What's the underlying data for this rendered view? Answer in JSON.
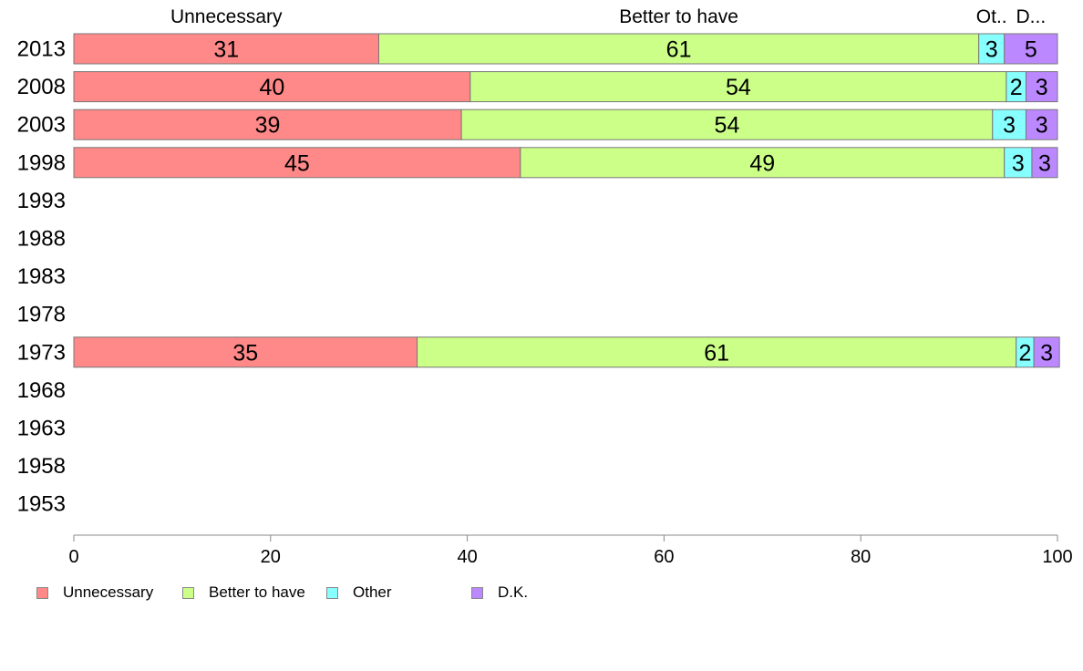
{
  "chart_data": {
    "type": "bar",
    "orientation": "horizontal",
    "stacked": true,
    "categories": [
      "2013",
      "2008",
      "2003",
      "1998",
      "1993",
      "1988",
      "1983",
      "1978",
      "1973",
      "1968",
      "1963",
      "1958",
      "1953"
    ],
    "series": [
      {
        "name": "Unnecessary",
        "color": "#ff8888",
        "values": [
          31,
          40,
          39,
          45,
          null,
          null,
          null,
          null,
          35,
          null,
          null,
          null,
          null
        ]
      },
      {
        "name": "Better to have",
        "color": "#ccff88",
        "values": [
          61,
          54,
          54,
          49,
          null,
          null,
          null,
          null,
          61,
          null,
          null,
          null,
          null
        ]
      },
      {
        "name": "Other",
        "color": "#88ffff",
        "values": [
          3,
          2,
          3,
          3,
          null,
          null,
          null,
          null,
          2,
          null,
          null,
          null,
          null
        ]
      },
      {
        "name": "D.K.",
        "color": "#bb88ff",
        "values": [
          5,
          3,
          3,
          3,
          null,
          null,
          null,
          null,
          3,
          null,
          null,
          null,
          null
        ]
      }
    ],
    "plotted_widths": [
      [
        31,
        61,
        2.6,
        5.4
      ],
      [
        40.3,
        54.5,
        2,
        3.2
      ],
      [
        39.4,
        54,
        3.4,
        3.2
      ],
      [
        45.4,
        49.2,
        2.8,
        2.6
      ],
      null,
      null,
      null,
      null,
      [
        34.9,
        60.9,
        1.8,
        2.6
      ],
      null,
      null,
      null,
      null
    ],
    "top_labels": [
      "Unnecessary",
      "Better to have",
      "Ot..",
      "D..."
    ],
    "xlim": [
      0,
      100
    ],
    "xticks": [
      0,
      20,
      40,
      60,
      80,
      100
    ],
    "grid": false,
    "legend_position": "bottom-left"
  }
}
